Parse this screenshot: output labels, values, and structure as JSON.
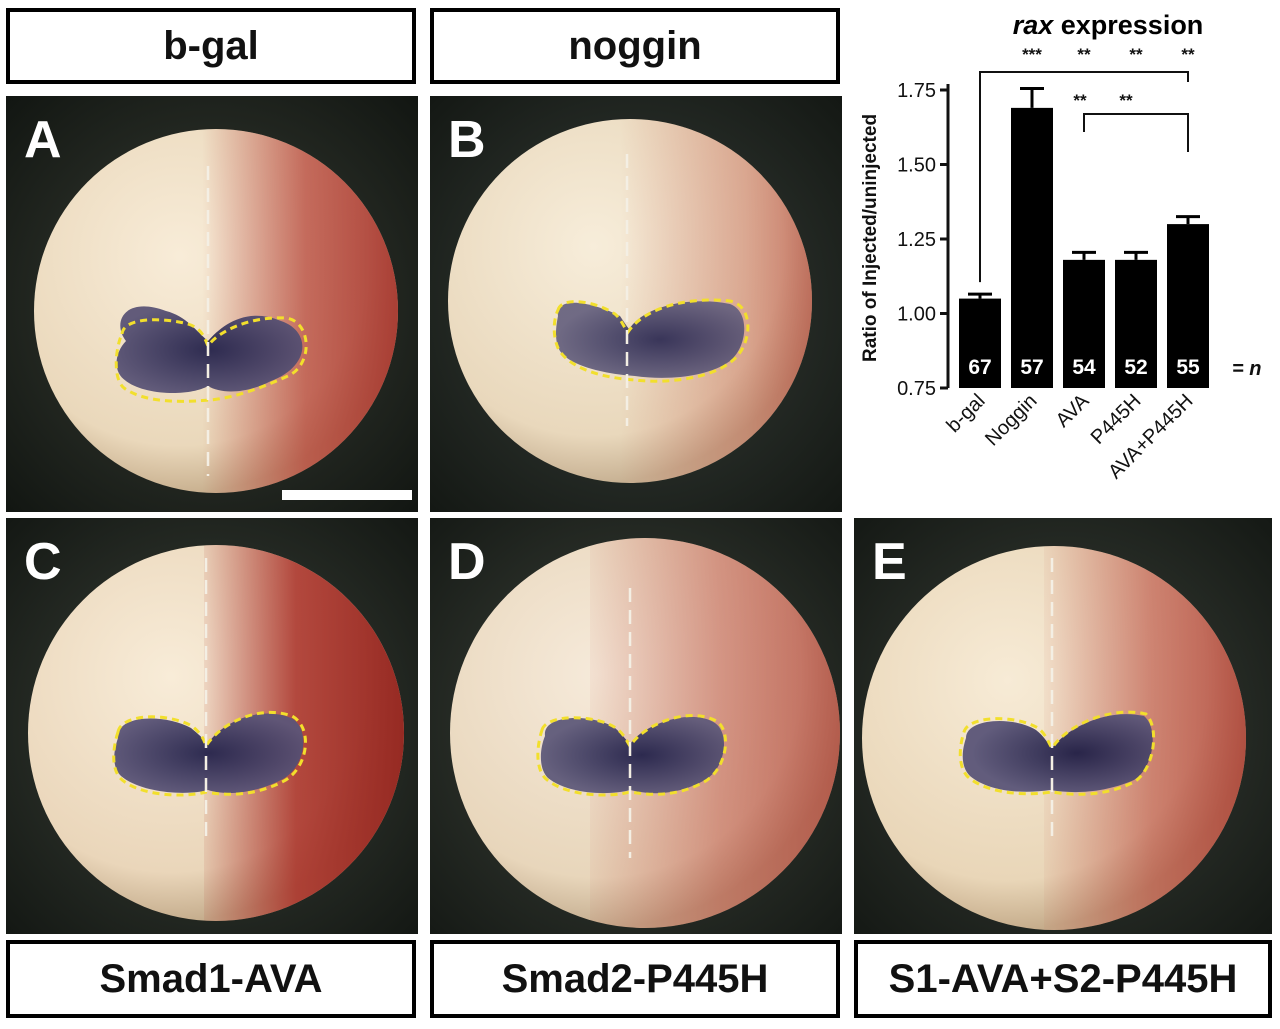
{
  "top_labels": [
    "b-gal",
    "noggin"
  ],
  "bottom_labels": [
    "Smad1-AVA",
    "Smad2-P445H",
    "S1-AVA+S2-P445H"
  ],
  "panels": [
    {
      "letter": "A"
    },
    {
      "letter": "B"
    },
    {
      "letter": "C"
    },
    {
      "letter": "D"
    },
    {
      "letter": "E"
    }
  ],
  "colors": {
    "embryo": "#efe0c8",
    "pigment": "#b43c32",
    "stain": "#2c2a55",
    "outline": "#f2df2c",
    "background": "#1d231f"
  },
  "chart_data": {
    "type": "bar",
    "title_italic": "rax",
    "title_rest": " expression",
    "ylabel": "Ratio of Injected/uninjected",
    "categories": [
      "b-gal",
      "Noggin",
      "AVA",
      "P445H",
      "AVA+P445H"
    ],
    "values": [
      1.05,
      1.69,
      1.18,
      1.18,
      1.3
    ],
    "errors": [
      0.015,
      0.065,
      0.025,
      0.025,
      0.025
    ],
    "n": [
      "67",
      "57",
      "54",
      "52",
      "55"
    ],
    "n_suffix": "= n",
    "ylim": [
      0.75,
      1.75
    ],
    "yticks": [
      "0.75",
      "1.00",
      "1.25",
      "1.50",
      "1.75"
    ],
    "sig_vs_bgal": [
      "***",
      "**",
      "**",
      "**"
    ],
    "sig_vs_ava_p445h": [
      "**",
      "**"
    ]
  }
}
